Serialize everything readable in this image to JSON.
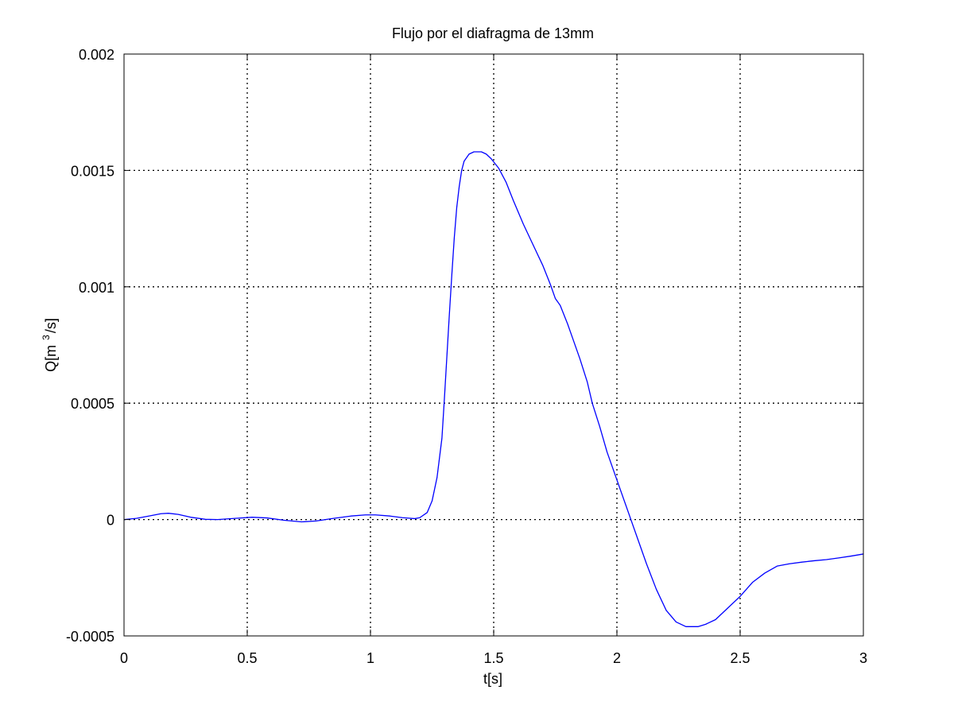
{
  "chart_data": {
    "type": "line",
    "title": "Flujo por el diafragma de 13mm",
    "xlabel": "t[s]",
    "ylabel_parts": [
      "Q[m",
      "3",
      "/s]"
    ],
    "xlim": [
      0,
      3
    ],
    "ylim": [
      -0.0005,
      0.002
    ],
    "xticks": [
      0,
      0.5,
      1,
      1.5,
      2,
      2.5,
      3
    ],
    "xtick_labels": [
      "0",
      "0.5",
      "1",
      "1.5",
      "2",
      "2.5",
      "3"
    ],
    "yticks": [
      -0.0005,
      0,
      0.0005,
      0.001,
      0.0015,
      0.002
    ],
    "ytick_labels": [
      "-0.0005",
      "0",
      "0.0005",
      "0.001",
      "0.0015",
      "0.002"
    ],
    "grid": true,
    "grid_style": "dotted",
    "line_color": "#0000ff",
    "series": [
      {
        "x": [
          0,
          0.05,
          0.1,
          0.15,
          0.18,
          0.22,
          0.27,
          0.33,
          0.38,
          0.45,
          0.52,
          0.58,
          0.65,
          0.72,
          0.78,
          0.85,
          0.92,
          0.98,
          1.02,
          1.08,
          1.13,
          1.18,
          1.2,
          1.23,
          1.25,
          1.27,
          1.29,
          1.3,
          1.31,
          1.32,
          1.33,
          1.34,
          1.35,
          1.36,
          1.37,
          1.38,
          1.4,
          1.42,
          1.44,
          1.45,
          1.47,
          1.49,
          1.52,
          1.55,
          1.58,
          1.62,
          1.66,
          1.7,
          1.73,
          1.75,
          1.77,
          1.8,
          1.82,
          1.85,
          1.88,
          1.9,
          1.93,
          1.96,
          2.0,
          2.04,
          2.08,
          2.12,
          2.16,
          2.2,
          2.24,
          2.28,
          2.31,
          2.33,
          2.36,
          2.4,
          2.45,
          2.5,
          2.55,
          2.6,
          2.65,
          2.7,
          2.75,
          2.8,
          2.85,
          2.9,
          2.95,
          3.0
        ],
        "y": [
          0,
          5e-06,
          1.5e-05,
          2.5e-05,
          2.7e-05,
          2.2e-05,
          1e-05,
          1e-06,
          0,
          5e-06,
          1e-05,
          7e-06,
          -3e-06,
          -1e-05,
          -6e-06,
          5e-06,
          1.5e-05,
          2e-05,
          2e-05,
          1.5e-05,
          8e-06,
          4e-06,
          8e-06,
          3e-05,
          8e-05,
          0.00018,
          0.00035,
          0.00052,
          0.0007,
          0.00088,
          0.00105,
          0.00121,
          0.00134,
          0.00143,
          0.0015,
          0.00154,
          0.00157,
          0.00158,
          0.00158,
          0.00158,
          0.00157,
          0.00155,
          0.00151,
          0.00145,
          0.00137,
          0.00127,
          0.00118,
          0.00109,
          0.00101,
          0.00095,
          0.00092,
          0.00084,
          0.00078,
          0.00069,
          0.00059,
          0.0005,
          0.0004,
          0.00029,
          0.00017,
          5e-05,
          -7e-05,
          -0.00019,
          -0.0003,
          -0.00039,
          -0.00044,
          -0.00046,
          -0.00046,
          -0.00046,
          -0.00045,
          -0.00043,
          -0.00038,
          -0.00033,
          -0.00027,
          -0.00023,
          -0.0002,
          -0.00019,
          -0.000183,
          -0.000177,
          -0.000172,
          -0.000165,
          -0.000157,
          -0.000148
        ]
      }
    ]
  }
}
